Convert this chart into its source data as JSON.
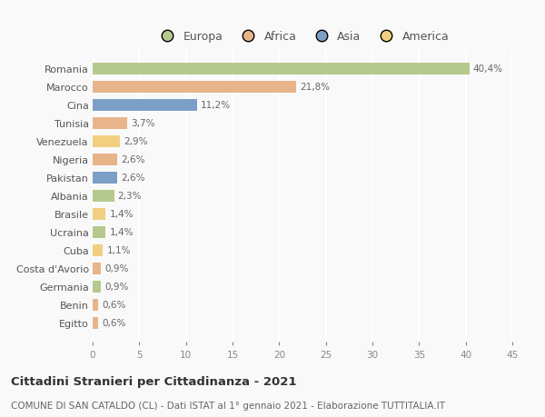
{
  "countries": [
    "Romania",
    "Marocco",
    "Cina",
    "Tunisia",
    "Venezuela",
    "Nigeria",
    "Pakistan",
    "Albania",
    "Brasile",
    "Ucraina",
    "Cuba",
    "Costa d'Avorio",
    "Germania",
    "Benin",
    "Egitto"
  ],
  "values": [
    40.4,
    21.8,
    11.2,
    3.7,
    2.9,
    2.6,
    2.6,
    2.3,
    1.4,
    1.4,
    1.1,
    0.9,
    0.9,
    0.6,
    0.6
  ],
  "labels": [
    "40,4%",
    "21,8%",
    "11,2%",
    "3,7%",
    "2,9%",
    "2,6%",
    "2,6%",
    "2,3%",
    "1,4%",
    "1,4%",
    "1,1%",
    "0,9%",
    "0,9%",
    "0,6%",
    "0,6%"
  ],
  "continents": [
    "Europa",
    "Africa",
    "Asia",
    "Africa",
    "America",
    "Africa",
    "Asia",
    "Europa",
    "America",
    "Europa",
    "America",
    "Africa",
    "Europa",
    "Africa",
    "Africa"
  ],
  "colors": {
    "Europa": "#b5c98e",
    "Africa": "#e8b48a",
    "Asia": "#7b9fc7",
    "America": "#f0d080"
  },
  "xlim": [
    0,
    45
  ],
  "xticks": [
    0,
    5,
    10,
    15,
    20,
    25,
    30,
    35,
    40,
    45
  ],
  "title": "Cittadini Stranieri per Cittadinanza - 2021",
  "subtitle": "COMUNE DI SAN CATALDO (CL) - Dati ISTAT al 1° gennaio 2021 - Elaborazione TUTTITALIA.IT",
  "background_color": "#f9f9f9",
  "grid_color": "#ffffff",
  "bar_height": 0.65,
  "label_fontsize": 7.5,
  "ytick_fontsize": 8.0,
  "xtick_fontsize": 7.5,
  "legend_fontsize": 9.0,
  "title_fontsize": 9.5,
  "subtitle_fontsize": 7.5
}
